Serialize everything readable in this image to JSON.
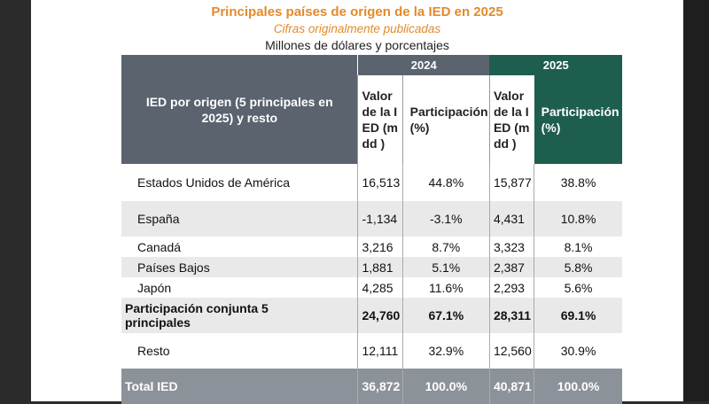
{
  "title": "Principales países de origen de la IED en 2025",
  "subtitle": "Cifras originalmente publicadas",
  "units": "Millones de dólares y porcentajes",
  "header": {
    "origin_label": "IED por origen (5 principales en 2025) y resto",
    "year_2024": "2024",
    "year_2025": "2025",
    "value_col": "Valor de la IED (mdd )",
    "share_col": "Participación (%)"
  },
  "rows": [
    {
      "label": "Estados Unidos de América",
      "v2024": "16,513",
      "p2024": "44.8%",
      "v2025": "15,877",
      "p2025": "38.8%"
    },
    {
      "label": "España",
      "v2024": "-1,134",
      "p2024": "-3.1%",
      "v2025": "4,431",
      "p2025": "10.8%"
    },
    {
      "label": "Canadá",
      "v2024": "3,216",
      "p2024": "8.7%",
      "v2025": "3,323",
      "p2025": "8.1%"
    },
    {
      "label": "Países Bajos",
      "v2024": "1,881",
      "p2024": "5.1%",
      "v2025": "2,387",
      "p2025": "5.8%"
    },
    {
      "label": "Japón",
      "v2024": "4,285",
      "p2024": "11.6%",
      "v2025": "2,293",
      "p2025": "5.6%"
    },
    {
      "label": "Participación conjunta 5 principales",
      "v2024": "24,760",
      "p2024": "67.1%",
      "v2025": "28,311",
      "p2025": "69.1%"
    },
    {
      "label": "Resto",
      "v2024": "12,111",
      "p2024": "32.9%",
      "v2025": "12,560",
      "p2025": "30.9%"
    },
    {
      "label": "Total IED",
      "v2024": "36,872",
      "p2024": "100.0%",
      "v2025": "40,871",
      "p2025": "100.0%"
    }
  ]
}
